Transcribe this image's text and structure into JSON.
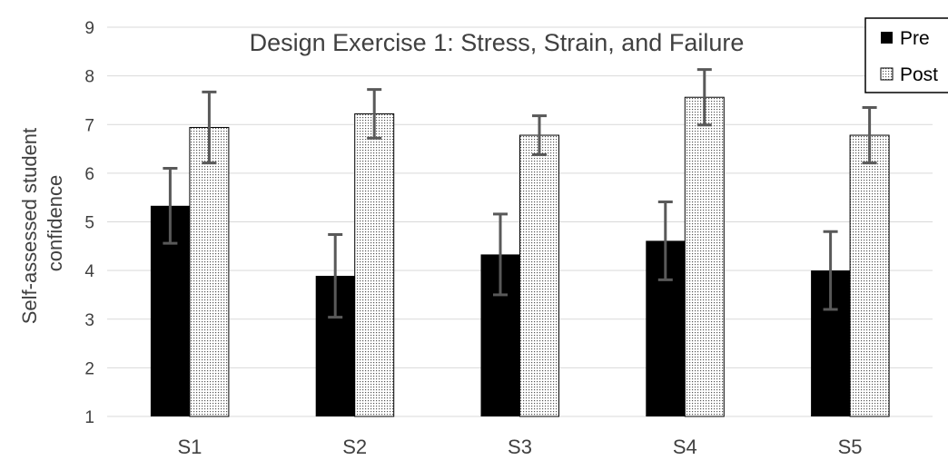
{
  "chart_data": {
    "type": "bar",
    "title": "Design Exercise 1: Stress, Strain, and Failure",
    "xlabel": "",
    "ylabel_lines": [
      "Self-assessed student",
      "confidence"
    ],
    "categories": [
      "S1",
      "S2",
      "S3",
      "S4",
      "S5"
    ],
    "ylim": [
      1,
      9
    ],
    "yticks": [
      "1",
      "2",
      "3",
      "4",
      "5",
      "6",
      "7",
      "8",
      "9"
    ],
    "grid": true,
    "legend_position": "top-right",
    "series": [
      {
        "name": "Pre",
        "values": [
          5.33,
          3.89,
          4.33,
          4.61,
          4.0
        ],
        "error": [
          0.77,
          0.85,
          0.83,
          0.8,
          0.8
        ],
        "color": "#000000",
        "pattern": "solid"
      },
      {
        "name": "Post",
        "values": [
          6.94,
          7.22,
          6.78,
          7.56,
          6.78
        ],
        "error": [
          0.73,
          0.5,
          0.4,
          0.57,
          0.57
        ],
        "color": "#ffffff",
        "pattern": "dotted"
      }
    ]
  }
}
